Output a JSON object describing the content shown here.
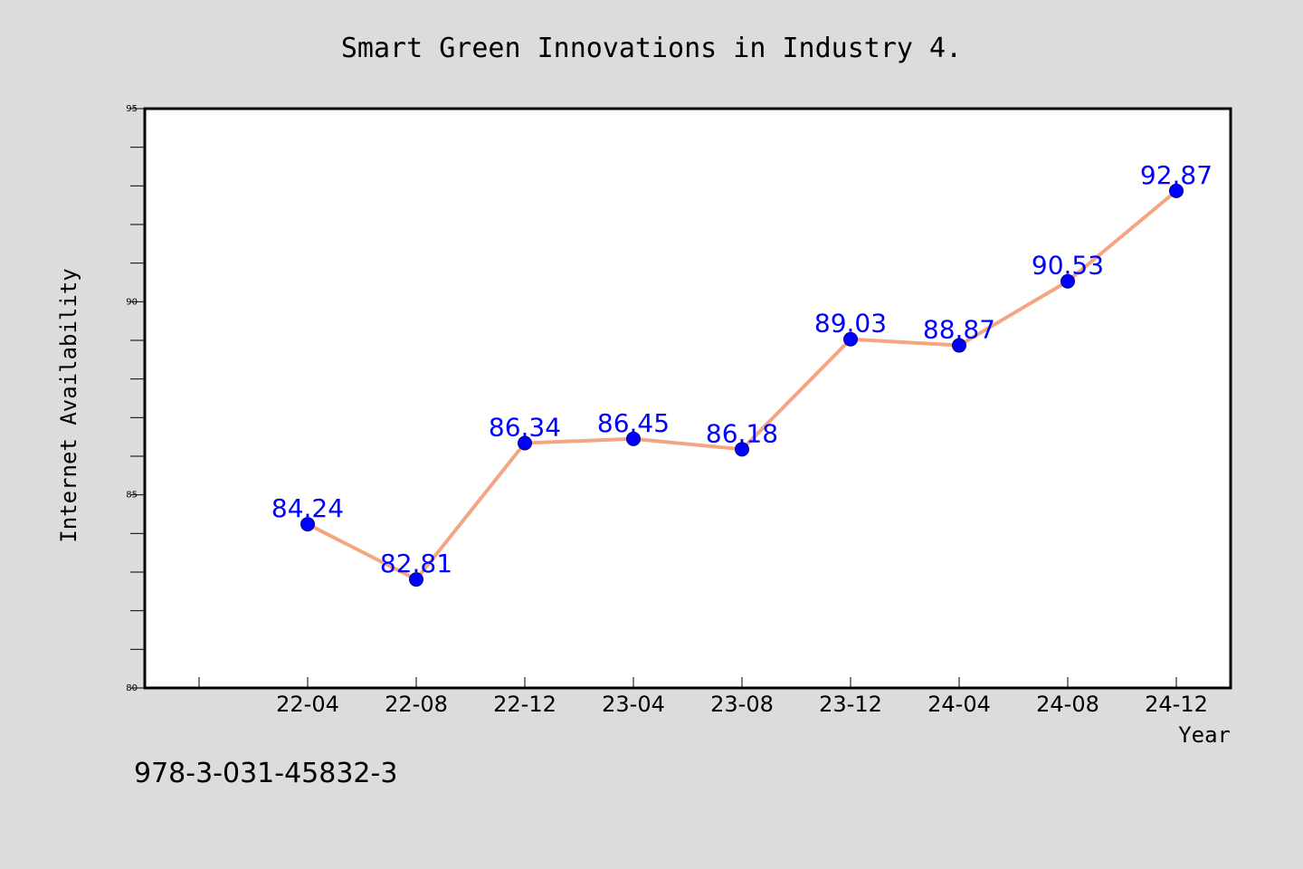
{
  "chart_data": {
    "type": "line",
    "title": "Smart Green Innovations in Industry 4.",
    "xlabel": "Year",
    "ylabel": "Internet Availability",
    "categories": [
      "22-04",
      "22-08",
      "22-12",
      "23-04",
      "23-08",
      "23-12",
      "24-04",
      "24-08",
      "24-12"
    ],
    "series": [
      {
        "values": [
          84.24,
          82.81,
          86.34,
          86.45,
          86.18,
          89.03,
          88.87,
          90.53,
          92.87
        ],
        "labels": [
          "84.24",
          "82.81",
          "86.34",
          "86.45",
          "86.18",
          "89.03",
          "88.87",
          "90.53",
          "92.87"
        ],
        "line_color": "#f4a582",
        "marker_color": "#0000ff",
        "label_color": "#0000ff"
      }
    ],
    "ylim": [
      80,
      95
    ],
    "yticks": [
      "80",
      "85",
      "90",
      "95"
    ],
    "grid": false,
    "legend": "none"
  },
  "footer": {
    "isbn": "978-3-031-45832-3"
  },
  "colors": {
    "background": "#dcdcdc",
    "plot_background": "#ffffff",
    "axis": "#000000"
  }
}
